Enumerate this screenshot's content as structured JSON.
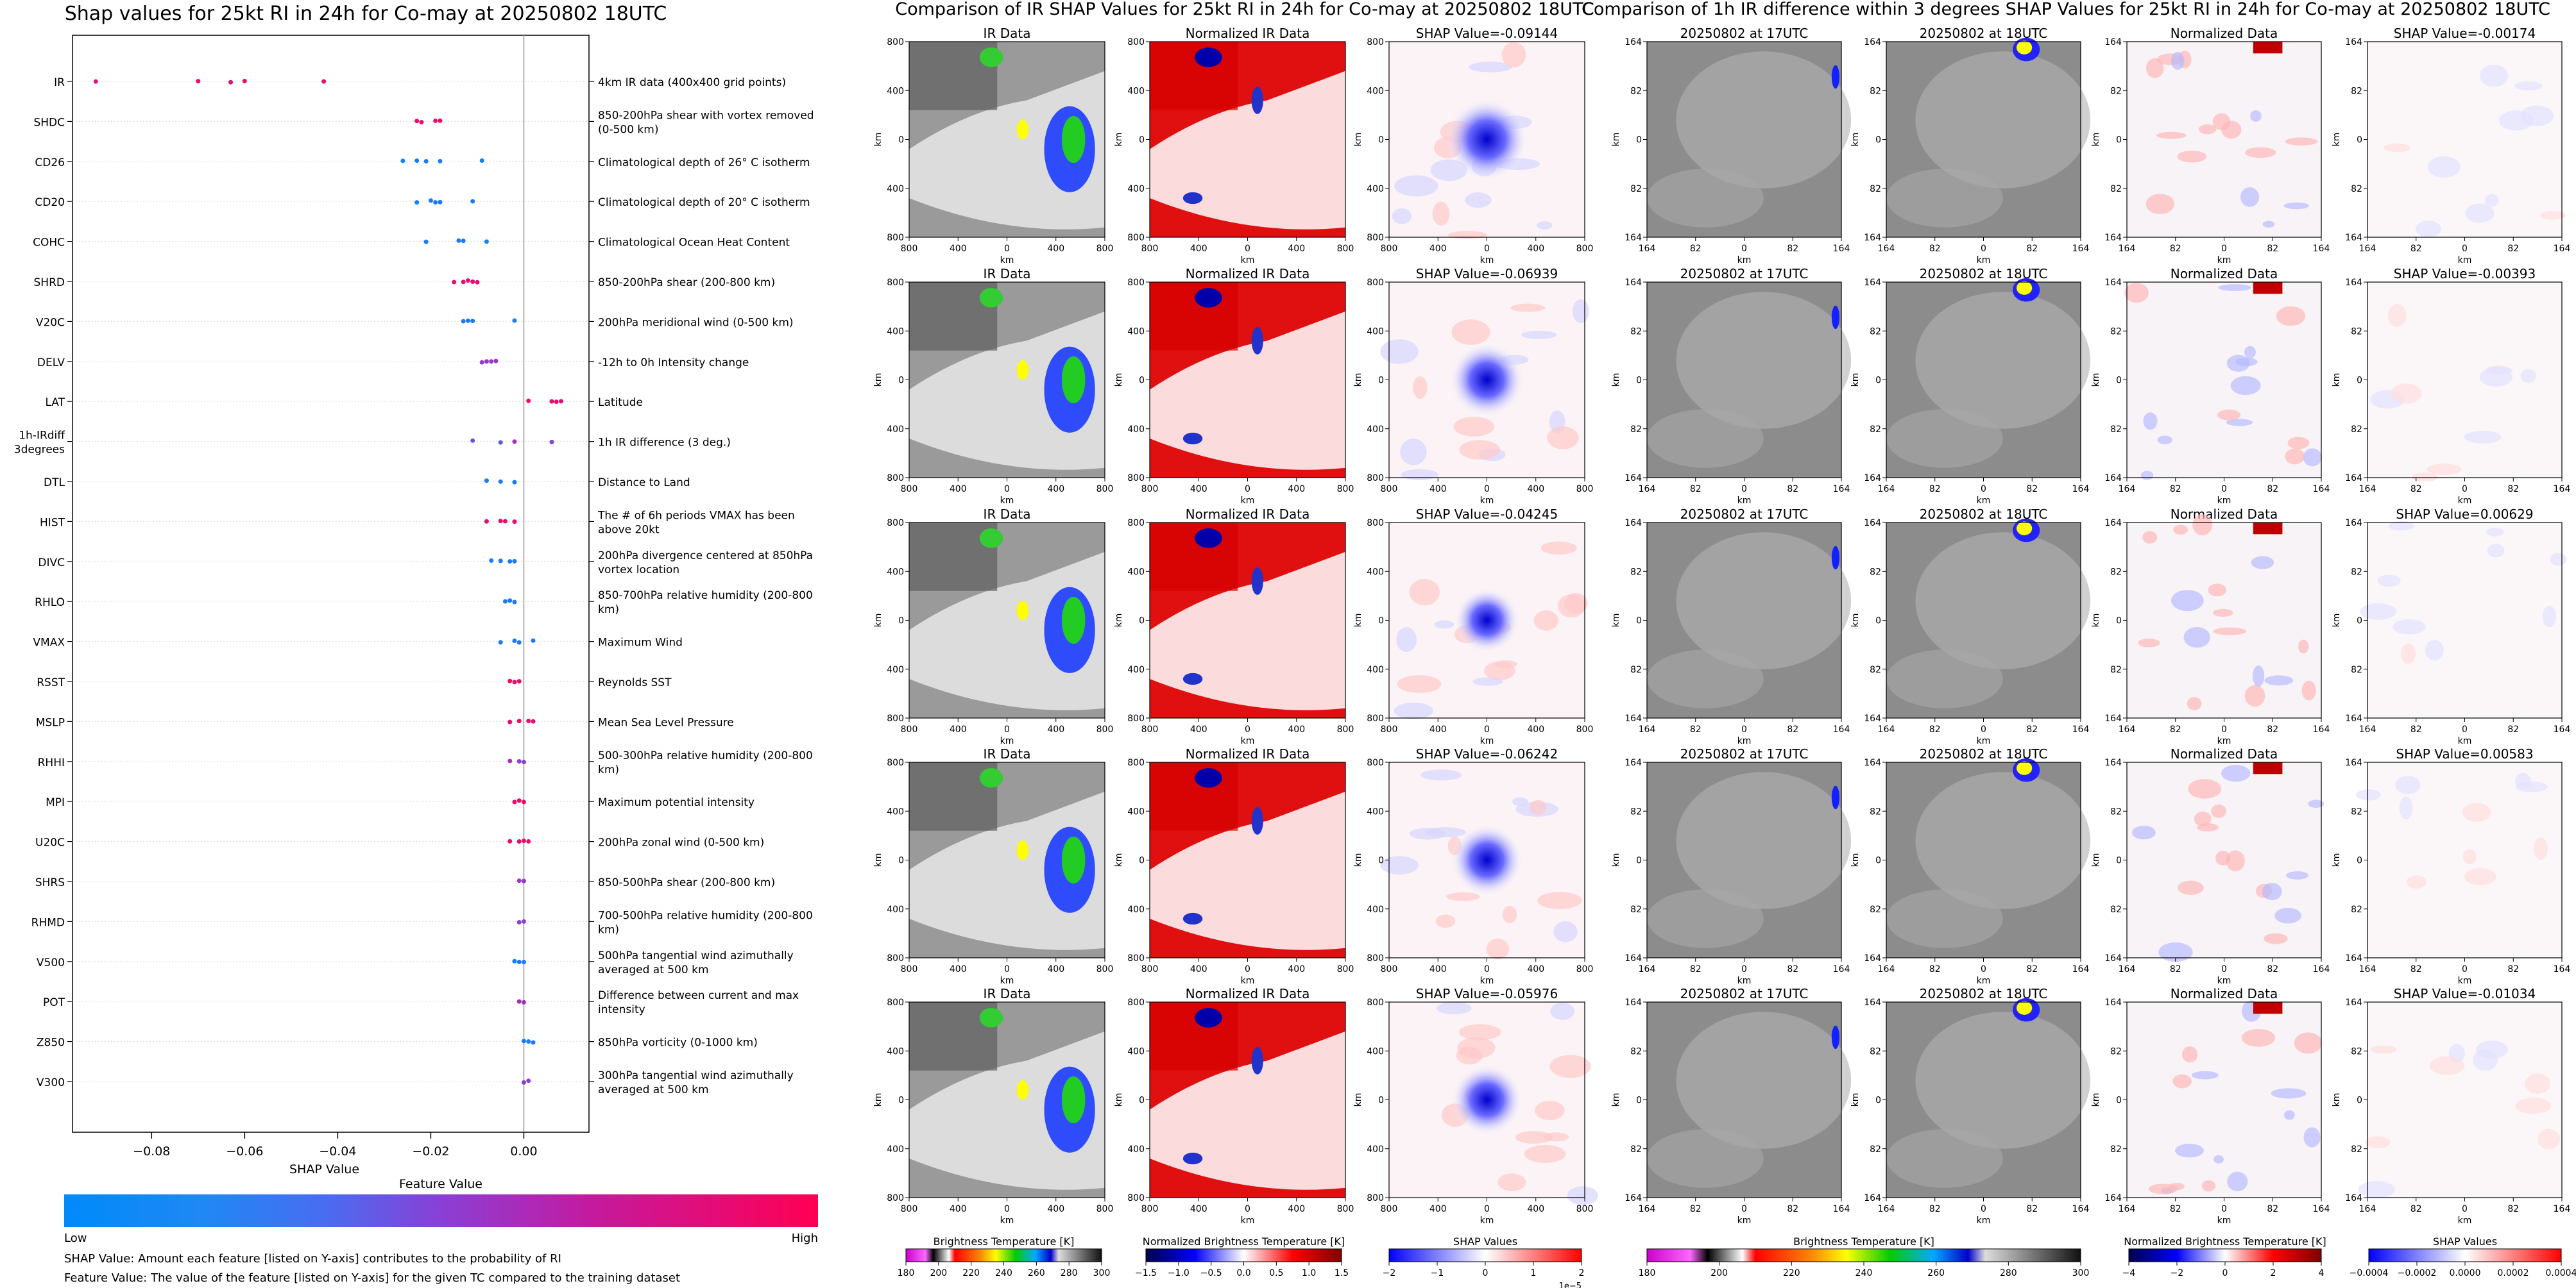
{
  "summary": {
    "title": "Shap values for 25kt RI in 24h for Co-may at 20250802 18UTC",
    "xlabel": "SHAP Value",
    "xticks": [
      -0.08,
      -0.06,
      -0.04,
      -0.02,
      0.0
    ],
    "xtick_labels": [
      "−0.08",
      "−0.06",
      "−0.04",
      "−0.02",
      "0.00"
    ],
    "colorbar_title": "Feature Value",
    "colorbar_low": "Low",
    "colorbar_high": "High",
    "note1": "SHAP Value: Amount each feature [listed on Y-axis] contributes to the probability of RI",
    "note2": "Feature Value: The value of the feature [listed on Y-axis] for the given TC compared to the training dataset"
  },
  "chart_data": [
    {
      "type": "scatter",
      "title": "Shap values for 25kt RI in 24h for Co-may at 20250802 18UTC",
      "xlabel": "SHAP Value",
      "ylabel": "",
      "xlim": [
        -0.097,
        0.014
      ],
      "grid": false,
      "features": [
        {
          "name": "IR",
          "desc": "4km IR data (400x400 grid points)",
          "points": [
            [
              -0.092,
              0.85
            ],
            [
              -0.07,
              0.9
            ],
            [
              -0.063,
              0.88
            ],
            [
              -0.06,
              0.87
            ],
            [
              -0.043,
              0.9
            ]
          ]
        },
        {
          "name": "SHDC",
          "desc": "850-200hPa shear with vortex removed (0-500 km)",
          "points": [
            [
              -0.023,
              0.9
            ],
            [
              -0.022,
              0.92
            ],
            [
              -0.019,
              0.88
            ],
            [
              -0.018,
              0.9
            ]
          ]
        },
        {
          "name": "CD26",
          "desc": "Climatological depth of 26° C isotherm",
          "points": [
            [
              -0.026,
              0.05
            ],
            [
              -0.023,
              0.08
            ],
            [
              -0.021,
              0.1
            ],
            [
              -0.018,
              0.1
            ],
            [
              -0.009,
              0.05
            ]
          ]
        },
        {
          "name": "CD20",
          "desc": "Climatological depth of 20° C isotherm",
          "points": [
            [
              -0.023,
              0.08
            ],
            [
              -0.02,
              0.1
            ],
            [
              -0.019,
              0.1
            ],
            [
              -0.018,
              0.1
            ],
            [
              -0.011,
              0.1
            ]
          ]
        },
        {
          "name": "COHC",
          "desc": "Climatological Ocean Heat Content",
          "points": [
            [
              -0.021,
              0.1
            ],
            [
              -0.014,
              0.1
            ],
            [
              -0.013,
              0.1
            ],
            [
              -0.008,
              0.05
            ]
          ]
        },
        {
          "name": "SHRD",
          "desc": "850-200hPa shear (200-800 km)",
          "points": [
            [
              -0.015,
              0.9
            ],
            [
              -0.013,
              0.88
            ],
            [
              -0.012,
              0.9
            ],
            [
              -0.011,
              0.92
            ],
            [
              -0.01,
              0.9
            ]
          ]
        },
        {
          "name": "V20C",
          "desc": "200hPa meridional wind (0-500 km)",
          "points": [
            [
              -0.013,
              0.12
            ],
            [
              -0.012,
              0.1
            ],
            [
              -0.011,
              0.1
            ],
            [
              -0.002,
              0.1
            ]
          ]
        },
        {
          "name": "DELV",
          "desc": "-12h to 0h Intensity change",
          "points": [
            [
              -0.009,
              0.55
            ],
            [
              -0.008,
              0.55
            ],
            [
              -0.007,
              0.55
            ],
            [
              -0.006,
              0.55
            ]
          ]
        },
        {
          "name": "LAT",
          "desc": "Latitude",
          "points": [
            [
              0.001,
              0.9
            ],
            [
              0.006,
              0.92
            ],
            [
              0.007,
              0.9
            ],
            [
              0.008,
              0.88
            ]
          ]
        },
        {
          "name": "1h-IRdiff\n3degrees",
          "desc": "1h IR difference (3 deg.)",
          "points": [
            [
              -0.011,
              0.35
            ],
            [
              -0.005,
              0.3
            ],
            [
              -0.002,
              0.6
            ],
            [
              0.006,
              0.5
            ]
          ]
        },
        {
          "name": "DTL",
          "desc": "Distance to Land",
          "points": [
            [
              -0.008,
              0.1
            ],
            [
              -0.005,
              0.1
            ],
            [
              -0.002,
              0.1
            ]
          ]
        },
        {
          "name": "HIST",
          "desc": "The # of 6h periods VMAX has been above 20kt",
          "points": [
            [
              -0.008,
              0.9
            ],
            [
              -0.005,
              0.92
            ],
            [
              -0.004,
              0.9
            ],
            [
              -0.002,
              0.88
            ]
          ]
        },
        {
          "name": "DIVC",
          "desc": "200hPa divergence centered at 850hPa vortex location",
          "points": [
            [
              -0.007,
              0.1
            ],
            [
              -0.005,
              0.1
            ],
            [
              -0.003,
              0.1
            ],
            [
              -0.002,
              0.1
            ]
          ]
        },
        {
          "name": "RHLO",
          "desc": "850-700hPa relative humidity (200-800 km)",
          "points": [
            [
              -0.004,
              0.1
            ],
            [
              -0.003,
              0.12
            ],
            [
              -0.002,
              0.1
            ]
          ]
        },
        {
          "name": "VMAX",
          "desc": "Maximum Wind",
          "points": [
            [
              -0.005,
              0.1
            ],
            [
              -0.002,
              0.1
            ],
            [
              -0.001,
              0.1
            ],
            [
              0.002,
              0.12
            ]
          ]
        },
        {
          "name": "RSST",
          "desc": "Reynolds SST",
          "points": [
            [
              -0.003,
              0.9
            ],
            [
              -0.002,
              0.9
            ],
            [
              -0.001,
              0.92
            ]
          ]
        },
        {
          "name": "MSLP",
          "desc": "Mean Sea Level Pressure",
          "points": [
            [
              -0.003,
              0.9
            ],
            [
              -0.001,
              0.92
            ],
            [
              0.001,
              0.9
            ],
            [
              0.002,
              0.88
            ]
          ]
        },
        {
          "name": "RHHI",
          "desc": "500-300hPa relative humidity (200-800 km)",
          "points": [
            [
              -0.003,
              0.6
            ],
            [
              -0.001,
              0.5
            ],
            [
              0.0,
              0.5
            ]
          ]
        },
        {
          "name": "MPI",
          "desc": "Maximum potential intensity",
          "points": [
            [
              -0.002,
              0.9
            ],
            [
              -0.001,
              0.9
            ],
            [
              0.0,
              0.92
            ]
          ]
        },
        {
          "name": "U20C",
          "desc": "200hPa zonal wind (0-500 km)",
          "points": [
            [
              -0.003,
              0.9
            ],
            [
              -0.001,
              0.92
            ],
            [
              0.0,
              0.9
            ],
            [
              0.001,
              0.88
            ]
          ]
        },
        {
          "name": "SHRS",
          "desc": "850-500hPa shear (200-800 km)",
          "points": [
            [
              -0.001,
              0.55
            ],
            [
              0.0,
              0.55
            ]
          ]
        },
        {
          "name": "RHMD",
          "desc": "700-500hPa relative humidity (200-800 km)",
          "points": [
            [
              -0.001,
              0.5
            ],
            [
              0.0,
              0.5
            ]
          ]
        },
        {
          "name": "V500",
          "desc": "500hPa tangential wind azimuthally averaged at 500 km",
          "points": [
            [
              -0.002,
              0.1
            ],
            [
              -0.001,
              0.1
            ],
            [
              0.0,
              0.1
            ]
          ]
        },
        {
          "name": "POT",
          "desc": "Difference between current and max intensity",
          "points": [
            [
              -0.001,
              0.6
            ],
            [
              0.0,
              0.6
            ]
          ]
        },
        {
          "name": "Z850",
          "desc": "850hPa vorticity (0-1000 km)",
          "points": [
            [
              0.0,
              0.1
            ],
            [
              0.001,
              0.1
            ],
            [
              0.002,
              0.1
            ]
          ]
        },
        {
          "name": "V300",
          "desc": "300hPa tangential wind azimuthally averaged at 500 km",
          "points": [
            [
              0.0,
              0.5
            ],
            [
              0.001,
              0.5
            ]
          ]
        }
      ]
    },
    {
      "type": "heatmap",
      "title": "Comparison of IR SHAP Values for 25kt RI in 24h for Co-may at 20250802 18UTC",
      "columns": [
        "IR Data",
        "Normalized IR Data",
        "SHAP Value"
      ],
      "shap_values": [
        "-0.09144",
        "-0.06939",
        "-0.04245",
        "-0.06242",
        "-0.05976"
      ],
      "axis_label": "km",
      "xtick_labels": [
        "800",
        "400",
        "0",
        "400",
        "800"
      ],
      "ytick_labels": [
        "800",
        "400",
        "0",
        "400",
        "800"
      ],
      "colorbars": [
        {
          "label": "Brightness Temperature [K]",
          "ticks": [
            "180",
            "200",
            "220",
            "240",
            "260",
            "280",
            "300"
          ]
        },
        {
          "label": "Normalized Brightness Temperature [K]",
          "ticks": [
            "−1.5",
            "−1.0",
            "−0.5",
            "0.0",
            "0.5",
            "1.0",
            "1.5"
          ]
        },
        {
          "label": "SHAP Values",
          "ticks": [
            "−2",
            "−1",
            "0",
            "1",
            "2"
          ],
          "exponent": "1e−5"
        }
      ]
    },
    {
      "type": "heatmap",
      "title": "Comparison of 1h IR difference within 3 degrees SHAP Values for 25kt RI in 24h for Co-may at 20250802 18UTC",
      "columns": [
        "20250802 at 17UTC",
        "20250802 at 18UTC",
        "Normalized Data",
        "SHAP Value"
      ],
      "shap_values": [
        "-0.00174",
        "-0.00393",
        "0.00629",
        "0.00583",
        "-0.01034"
      ],
      "axis_label": "km",
      "xtick_labels": [
        "164",
        "82",
        "0",
        "82",
        "164"
      ],
      "ytick_labels": [
        "164",
        "82",
        "0",
        "82",
        "164"
      ],
      "colorbars": [
        {
          "label": "Brightness Temperature [K]",
          "ticks": [
            "180",
            "200",
            "220",
            "240",
            "260",
            "280",
            "300"
          ]
        },
        {
          "label": "Normalized Brightness Temperature [K]",
          "ticks": [
            "−4",
            "−2",
            "0",
            "2",
            "4"
          ]
        },
        {
          "label": "SHAP Values",
          "ticks": [
            "−0.0004",
            "−0.0002",
            "0.0000",
            "0.0002",
            "0.0004"
          ]
        }
      ]
    }
  ]
}
